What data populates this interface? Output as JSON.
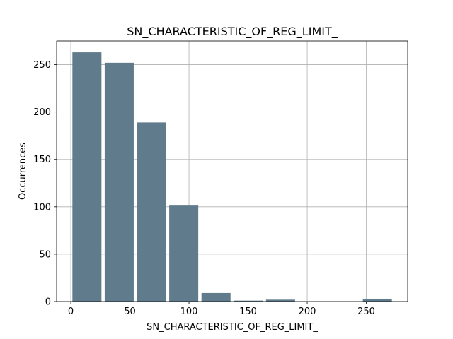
{
  "chart_data": {
    "type": "bar",
    "title": "SN_CHARACTERISTIC_OF_REG_LIMIT_",
    "xlabel": "SN_CHARACTERISTIC_OF_REG_LIMIT_",
    "ylabel": "Occurrences",
    "xlim": [
      -12,
      285
    ],
    "ylim": [
      0,
      275
    ],
    "xticks": [
      0,
      50,
      100,
      150,
      200,
      250
    ],
    "yticks": [
      0,
      50,
      100,
      150,
      200,
      250
    ],
    "grid": true,
    "bar_color": "#607b8b",
    "bins": [
      {
        "start": 0,
        "end": 27.3,
        "count": 263
      },
      {
        "start": 27.3,
        "end": 54.6,
        "count": 252
      },
      {
        "start": 54.6,
        "end": 81.9,
        "count": 189
      },
      {
        "start": 81.9,
        "end": 109.2,
        "count": 102
      },
      {
        "start": 109.2,
        "end": 136.5,
        "count": 9
      },
      {
        "start": 136.5,
        "end": 163.8,
        "count": 1
      },
      {
        "start": 163.8,
        "end": 191.1,
        "count": 2
      },
      {
        "start": 191.1,
        "end": 218.4,
        "count": 0
      },
      {
        "start": 218.4,
        "end": 245.7,
        "count": 0
      },
      {
        "start": 245.7,
        "end": 273,
        "count": 3
      }
    ]
  }
}
